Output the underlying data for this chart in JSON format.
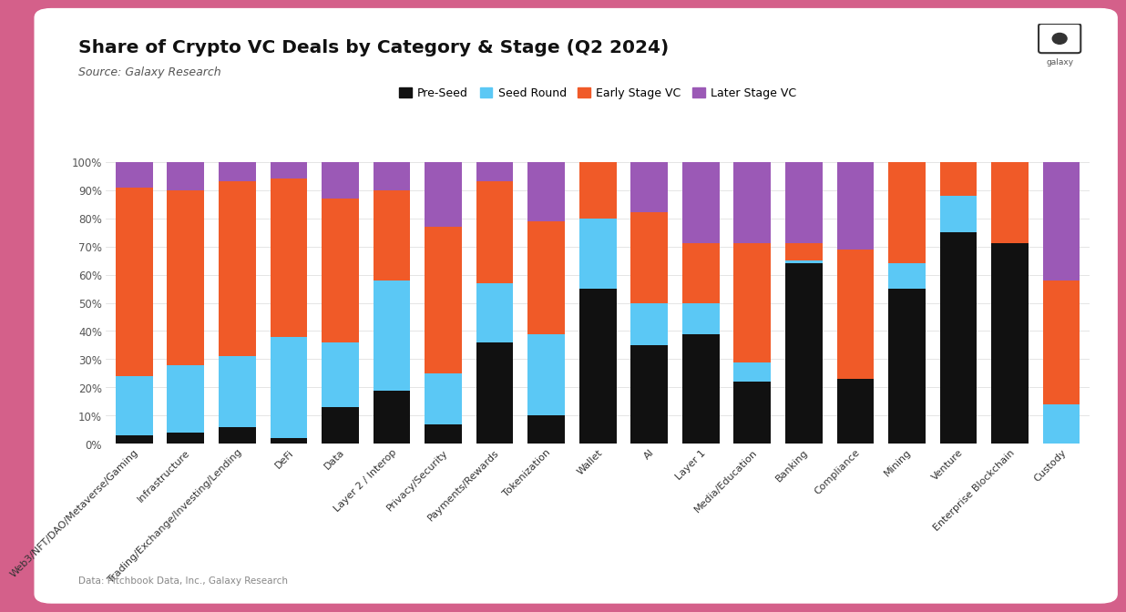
{
  "title": "Share of Crypto VC Deals by Category & Stage (Q2 2024)",
  "source": "Source: Galaxy Research",
  "footer": "Data: Pitchbook Data, Inc., Galaxy Research",
  "categories": [
    "Web3/NFT/DAO/Metaverse/Gaming",
    "Infrastructure",
    "Trading/Exchange/Investing/Lending",
    "DeFi",
    "Data",
    "Layer 2 / Interop",
    "Privacy/Security",
    "Payments/Rewards",
    "Tokenization",
    "Wallet",
    "AI",
    "Layer 1",
    "Media/Education",
    "Banking",
    "Compliance",
    "Mining",
    "Venture",
    "Enterprise Blockchain",
    "Custody"
  ],
  "pre_seed": [
    3,
    4,
    6,
    2,
    13,
    19,
    7,
    36,
    10,
    55,
    35,
    39,
    22,
    64,
    23,
    55,
    75,
    71,
    0
  ],
  "seed_round": [
    21,
    24,
    25,
    36,
    23,
    39,
    18,
    21,
    29,
    25,
    15,
    11,
    7,
    1,
    0,
    9,
    13,
    0,
    14
  ],
  "early_vc": [
    67,
    62,
    62,
    56,
    51,
    32,
    52,
    36,
    40,
    20,
    32,
    21,
    42,
    6,
    46,
    36,
    12,
    29,
    44
  ],
  "later_vc": [
    9,
    10,
    7,
    6,
    13,
    10,
    23,
    7,
    21,
    0,
    18,
    29,
    29,
    29,
    31,
    0,
    0,
    0,
    42
  ],
  "colors": {
    "pre_seed": "#111111",
    "seed_round": "#5bc8f5",
    "early_vc": "#f05a28",
    "later_vc": "#9b59b6"
  },
  "background_color": "#d4608a",
  "chart_bg": "#ffffff",
  "ylabel_ticks": [
    "0%",
    "10%",
    "20%",
    "30%",
    "40%",
    "50%",
    "60%",
    "70%",
    "80%",
    "90%",
    "100%"
  ],
  "legend_labels": [
    "Pre-Seed",
    "Seed Round",
    "Early Stage VC",
    "Later Stage VC"
  ]
}
